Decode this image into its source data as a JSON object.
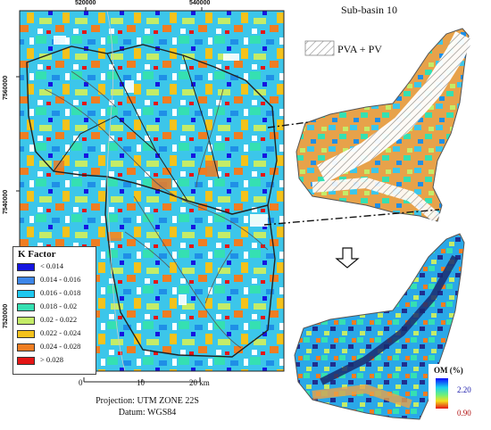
{
  "map": {
    "x_ticks": [
      "520000",
      "540000"
    ],
    "y_ticks": [
      "7560000",
      "7540000",
      "7520000"
    ],
    "scale_bar": {
      "labels": [
        "0",
        "10",
        "20 km"
      ]
    },
    "projection": "Projection: UTM ZONE 22S",
    "datum": "Datum: WGS84"
  },
  "legend": {
    "title": "K Factor",
    "items": [
      {
        "label": "< 0.014",
        "color": "#1515e0"
      },
      {
        "label": "0.014 - 0.016",
        "color": "#3d86e8"
      },
      {
        "label": "0.016 - 0.018",
        "color": "#1ec8f0"
      },
      {
        "label": "0.018 - 0.02",
        "color": "#35e0b2"
      },
      {
        "label": "0.02 - 0.022",
        "color": "#c4ec68"
      },
      {
        "label": "0.022 - 0.024",
        "color": "#f4c21c"
      },
      {
        "label": "0.024 - 0.028",
        "color": "#ef7d22"
      },
      {
        "label": "> 0.028",
        "color": "#e41515"
      }
    ]
  },
  "subbasin": {
    "title": "Sub-basin 10",
    "hatch_label": "PVA + PV"
  },
  "om_legend": {
    "title": "OM (%)",
    "max": "2.20",
    "min": "0.90"
  }
}
